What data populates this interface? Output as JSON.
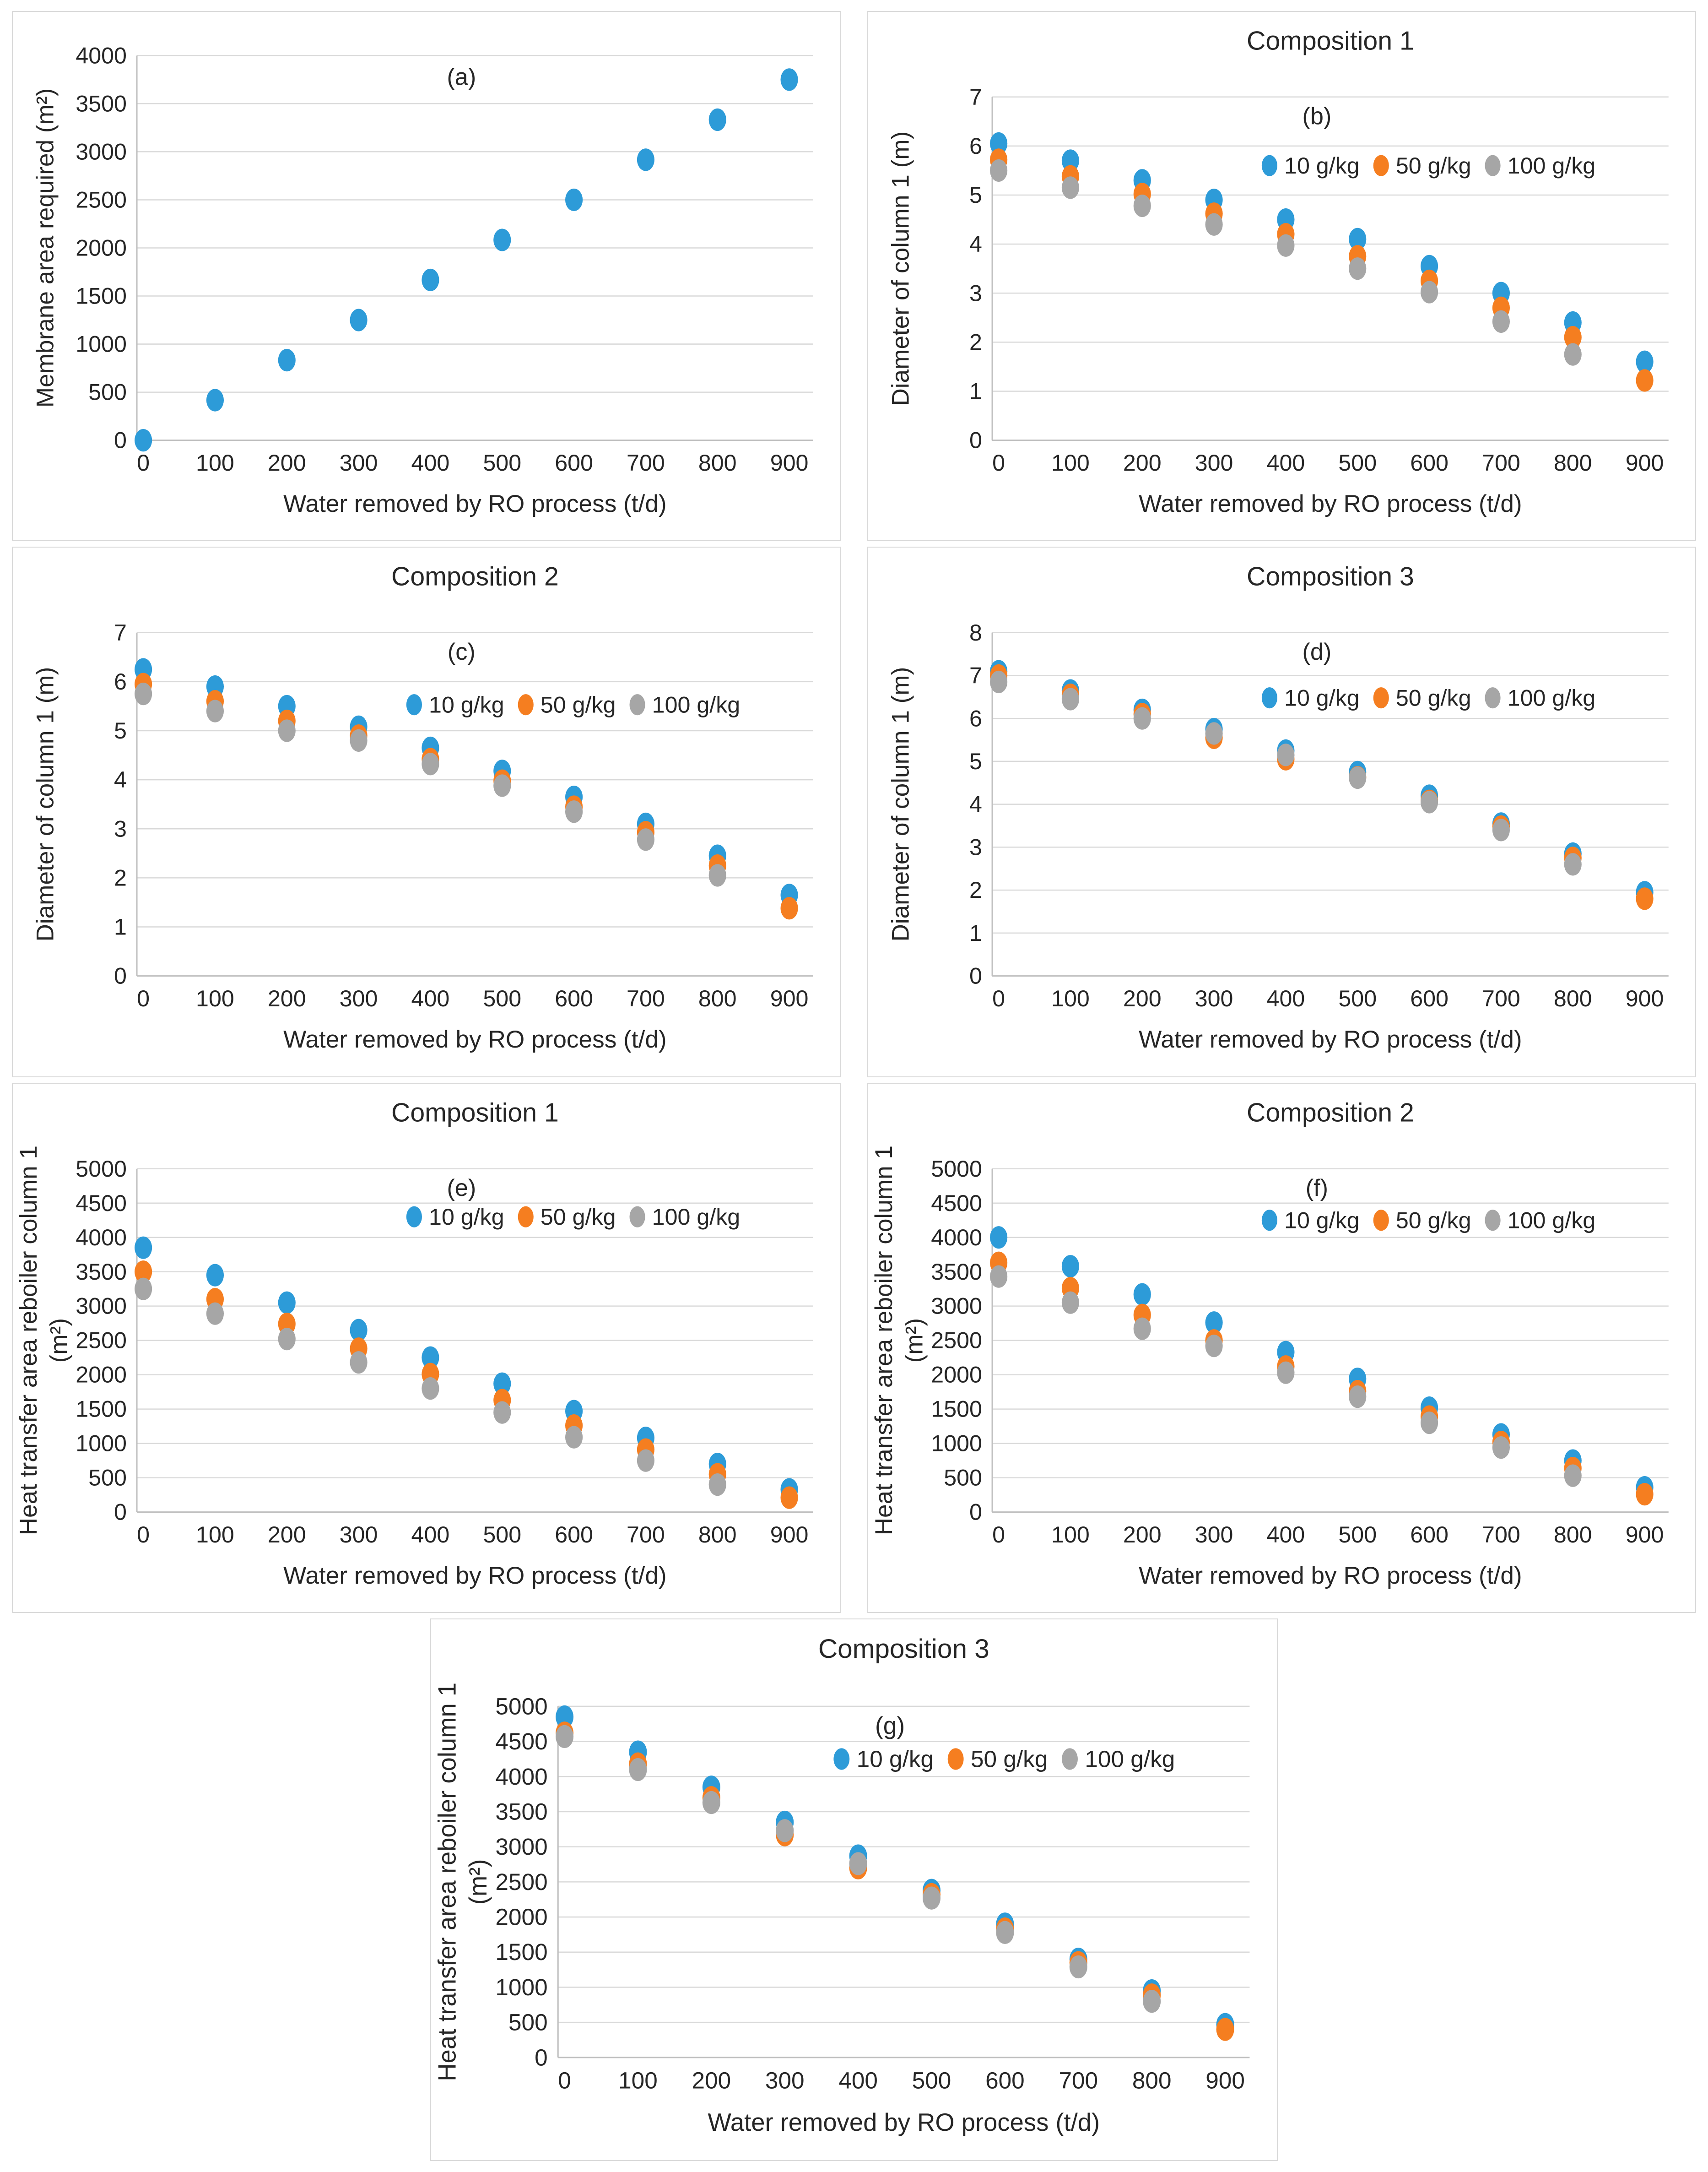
{
  "figure": {
    "background": "#ffffff",
    "panel_border_color": "#d9d9d9"
  },
  "colors": {
    "s10": "#2D9BD8",
    "s50": "#F57E20",
    "s100": "#A6A6A6",
    "grid": "#D9D9D9",
    "axis": "#BFBFBF",
    "text": "#262626"
  },
  "chart_data": [
    {
      "id": "a",
      "type": "scatter",
      "title": null,
      "panel_label": "(a)",
      "xlabel": "Water removed by RO process (t/d)",
      "ylabel_lines": [
        "Membrane area required (m²)"
      ],
      "x": [
        0,
        100,
        200,
        300,
        400,
        500,
        600,
        700,
        800,
        900
      ],
      "xticks": [
        "0",
        "100",
        "200",
        "300",
        "400",
        "500",
        "600",
        "700",
        "800",
        "900"
      ],
      "ylim": [
        0,
        4000
      ],
      "ytick_step": 500,
      "yticks": [
        "0",
        "500",
        "1000",
        "1500",
        "2000",
        "2500",
        "3000",
        "3500",
        "4000"
      ],
      "grid": true,
      "legend": null,
      "series": [
        {
          "name": null,
          "color_key": "s10",
          "values": [
            0,
            417,
            833,
            1250,
            1667,
            2083,
            2500,
            2917,
            3333,
            3750
          ]
        }
      ]
    },
    {
      "id": "b",
      "type": "scatter",
      "title": "Composition 1",
      "panel_label": "(b)",
      "xlabel": "Water removed by RO process (t/d)",
      "ylabel_lines": [
        "Diameter of column 1 (m)"
      ],
      "x": [
        0,
        100,
        200,
        300,
        400,
        500,
        600,
        700,
        800,
        900
      ],
      "xticks": [
        "0",
        "100",
        "200",
        "300",
        "400",
        "500",
        "600",
        "700",
        "800",
        "900"
      ],
      "ylim": [
        0,
        7
      ],
      "ytick_step": 1,
      "yticks": [
        "0",
        "1",
        "2",
        "3",
        "4",
        "5",
        "6",
        "7"
      ],
      "grid": true,
      "legend": {
        "position": "inside-top-right",
        "labels": [
          "10 g/kg",
          "50 g/kg",
          "100 g/kg"
        ]
      },
      "series": [
        {
          "name": "10 g/kg",
          "color_key": "s10",
          "values": [
            6.05,
            5.7,
            5.3,
            4.9,
            4.5,
            4.1,
            3.55,
            3.0,
            2.4,
            1.6
          ]
        },
        {
          "name": "50 g/kg",
          "color_key": "s50",
          "values": [
            5.72,
            5.38,
            5.02,
            4.62,
            4.2,
            3.75,
            3.25,
            2.7,
            2.1,
            1.22
          ]
        },
        {
          "name": "100 g/kg",
          "color_key": "s100",
          "values": [
            5.5,
            5.15,
            4.78,
            4.4,
            3.97,
            3.5,
            3.02,
            2.42,
            1.75,
            null
          ]
        }
      ]
    },
    {
      "id": "c",
      "type": "scatter",
      "title": "Composition 2",
      "panel_label": "(c)",
      "xlabel": "Water removed by RO process (t/d)",
      "ylabel_lines": [
        "Diameter of column 1 (m)"
      ],
      "x": [
        0,
        100,
        200,
        300,
        400,
        500,
        600,
        700,
        800,
        900
      ],
      "xticks": [
        "0",
        "100",
        "200",
        "300",
        "400",
        "500",
        "600",
        "700",
        "800",
        "900"
      ],
      "ylim": [
        0,
        7
      ],
      "ytick_step": 1,
      "yticks": [
        "0",
        "1",
        "2",
        "3",
        "4",
        "5",
        "6",
        "7"
      ],
      "grid": true,
      "legend": {
        "position": "inside-top-right",
        "labels": [
          "10 g/kg",
          "50 g/kg",
          "100 g/kg"
        ]
      },
      "series": [
        {
          "name": "10 g/kg",
          "color_key": "s10",
          "values": [
            6.25,
            5.9,
            5.5,
            5.08,
            4.65,
            4.18,
            3.65,
            3.1,
            2.45,
            1.65
          ]
        },
        {
          "name": "50 g/kg",
          "color_key": "s50",
          "values": [
            5.95,
            5.6,
            5.2,
            4.9,
            4.42,
            3.98,
            3.45,
            2.93,
            2.25,
            1.38
          ]
        },
        {
          "name": "100 g/kg",
          "color_key": "s100",
          "values": [
            5.75,
            5.4,
            5.0,
            4.8,
            4.32,
            3.88,
            3.35,
            2.78,
            2.05,
            null
          ]
        }
      ]
    },
    {
      "id": "d",
      "type": "scatter",
      "title": "Composition 3",
      "panel_label": "(d)",
      "xlabel": "Water removed by RO process (t/d)",
      "ylabel_lines": [
        "Diameter of column 1 (m)"
      ],
      "x": [
        0,
        100,
        200,
        300,
        400,
        500,
        600,
        700,
        800,
        900
      ],
      "xticks": [
        "0",
        "100",
        "200",
        "300",
        "400",
        "500",
        "600",
        "700",
        "800",
        "900"
      ],
      "ylim": [
        0,
        8
      ],
      "ytick_step": 1,
      "yticks": [
        "0",
        "1",
        "2",
        "3",
        "4",
        "5",
        "6",
        "7",
        "8"
      ],
      "grid": true,
      "legend": {
        "position": "inside-top-right",
        "labels": [
          "10 g/kg",
          "50 g/kg",
          "100 g/kg"
        ]
      },
      "series": [
        {
          "name": "10 g/kg",
          "color_key": "s10",
          "values": [
            7.1,
            6.65,
            6.2,
            5.75,
            5.25,
            4.75,
            4.2,
            3.55,
            2.85,
            1.95
          ]
        },
        {
          "name": "50 g/kg",
          "color_key": "s50",
          "values": [
            7.0,
            6.55,
            6.1,
            5.55,
            5.05,
            4.63,
            4.08,
            3.48,
            2.75,
            1.8
          ]
        },
        {
          "name": "100 g/kg",
          "color_key": "s100",
          "values": [
            6.85,
            6.45,
            6.0,
            5.65,
            5.15,
            4.62,
            4.05,
            3.4,
            2.6,
            null
          ]
        }
      ]
    },
    {
      "id": "e",
      "type": "scatter",
      "title": "Composition 1",
      "panel_label": "(e)",
      "xlabel": "Water removed by RO process (t/d)",
      "ylabel_lines": [
        "Heat transfer area reboiler column 1",
        "(m²)"
      ],
      "x": [
        0,
        100,
        200,
        300,
        400,
        500,
        600,
        700,
        800,
        900
      ],
      "xticks": [
        "0",
        "100",
        "200",
        "300",
        "400",
        "500",
        "600",
        "700",
        "800",
        "900"
      ],
      "ylim": [
        0,
        5000
      ],
      "ytick_step": 500,
      "yticks": [
        "0",
        "500",
        "1000",
        "1500",
        "2000",
        "2500",
        "3000",
        "3500",
        "4000",
        "4500",
        "5000"
      ],
      "grid": true,
      "legend": {
        "position": "inside-top-right",
        "labels": [
          "10 g/kg",
          "50 g/kg",
          "100 g/kg"
        ]
      },
      "series": [
        {
          "name": "10 g/kg",
          "color_key": "s10",
          "values": [
            3850,
            3450,
            3050,
            2650,
            2250,
            1870,
            1470,
            1080,
            700,
            330
          ]
        },
        {
          "name": "50 g/kg",
          "color_key": "s50",
          "values": [
            3500,
            3100,
            2740,
            2380,
            2010,
            1630,
            1260,
            910,
            550,
            210
          ]
        },
        {
          "name": "100 g/kg",
          "color_key": "s100",
          "values": [
            3250,
            2890,
            2520,
            2180,
            1800,
            1450,
            1090,
            750,
            400,
            null
          ]
        }
      ]
    },
    {
      "id": "f",
      "type": "scatter",
      "title": "Composition 2",
      "panel_label": "(f)",
      "xlabel": "Water removed by RO process (t/d)",
      "ylabel_lines": [
        "Heat transfer area reboiler column 1",
        "(m²)"
      ],
      "x": [
        0,
        100,
        200,
        300,
        400,
        500,
        600,
        700,
        800,
        900
      ],
      "xticks": [
        "0",
        "100",
        "200",
        "300",
        "400",
        "500",
        "600",
        "700",
        "800",
        "900"
      ],
      "ylim": [
        0,
        5000
      ],
      "ytick_step": 500,
      "yticks": [
        "0",
        "500",
        "1000",
        "1500",
        "2000",
        "2500",
        "3000",
        "3500",
        "4000",
        "4500",
        "5000"
      ],
      "grid": true,
      "legend": {
        "position": "inside-top-right",
        "labels": [
          "10 g/kg",
          "50 g/kg",
          "100 g/kg"
        ]
      },
      "series": [
        {
          "name": "10 g/kg",
          "color_key": "s10",
          "values": [
            4000,
            3580,
            3170,
            2760,
            2330,
            1940,
            1520,
            1130,
            750,
            360
          ]
        },
        {
          "name": "50 g/kg",
          "color_key": "s50",
          "values": [
            3630,
            3260,
            2870,
            2500,
            2120,
            1760,
            1390,
            1020,
            640,
            260
          ]
        },
        {
          "name": "100 g/kg",
          "color_key": "s100",
          "values": [
            3430,
            3050,
            2670,
            2420,
            2030,
            1680,
            1300,
            940,
            530,
            null
          ]
        }
      ]
    },
    {
      "id": "g",
      "type": "scatter",
      "title": "Composition 3",
      "panel_label": "(g)",
      "xlabel": "Water removed by RO process (t/d)",
      "ylabel_lines": [
        "Heat transfer area reboiler column 1",
        "(m²)"
      ],
      "x": [
        0,
        100,
        200,
        300,
        400,
        500,
        600,
        700,
        800,
        900
      ],
      "xticks": [
        "0",
        "100",
        "200",
        "300",
        "400",
        "500",
        "600",
        "700",
        "800",
        "900"
      ],
      "ylim": [
        0,
        5000
      ],
      "ytick_step": 500,
      "yticks": [
        "0",
        "500",
        "1000",
        "1500",
        "2000",
        "2500",
        "3000",
        "3500",
        "4000",
        "4500",
        "5000"
      ],
      "grid": true,
      "legend": {
        "position": "inside-top-right",
        "labels": [
          "10 g/kg",
          "50 g/kg",
          "100 g/kg"
        ]
      },
      "series": [
        {
          "name": "10 g/kg",
          "color_key": "s10",
          "values": [
            4850,
            4350,
            3850,
            3350,
            2870,
            2380,
            1900,
            1400,
            950,
            470
          ]
        },
        {
          "name": "50 g/kg",
          "color_key": "s50",
          "values": [
            4620,
            4180,
            3700,
            3170,
            2700,
            2320,
            1830,
            1350,
            890,
            400
          ]
        },
        {
          "name": "100 g/kg",
          "color_key": "s100",
          "values": [
            4570,
            4100,
            3630,
            3230,
            2760,
            2270,
            1780,
            1290,
            800,
            null
          ]
        }
      ]
    }
  ]
}
